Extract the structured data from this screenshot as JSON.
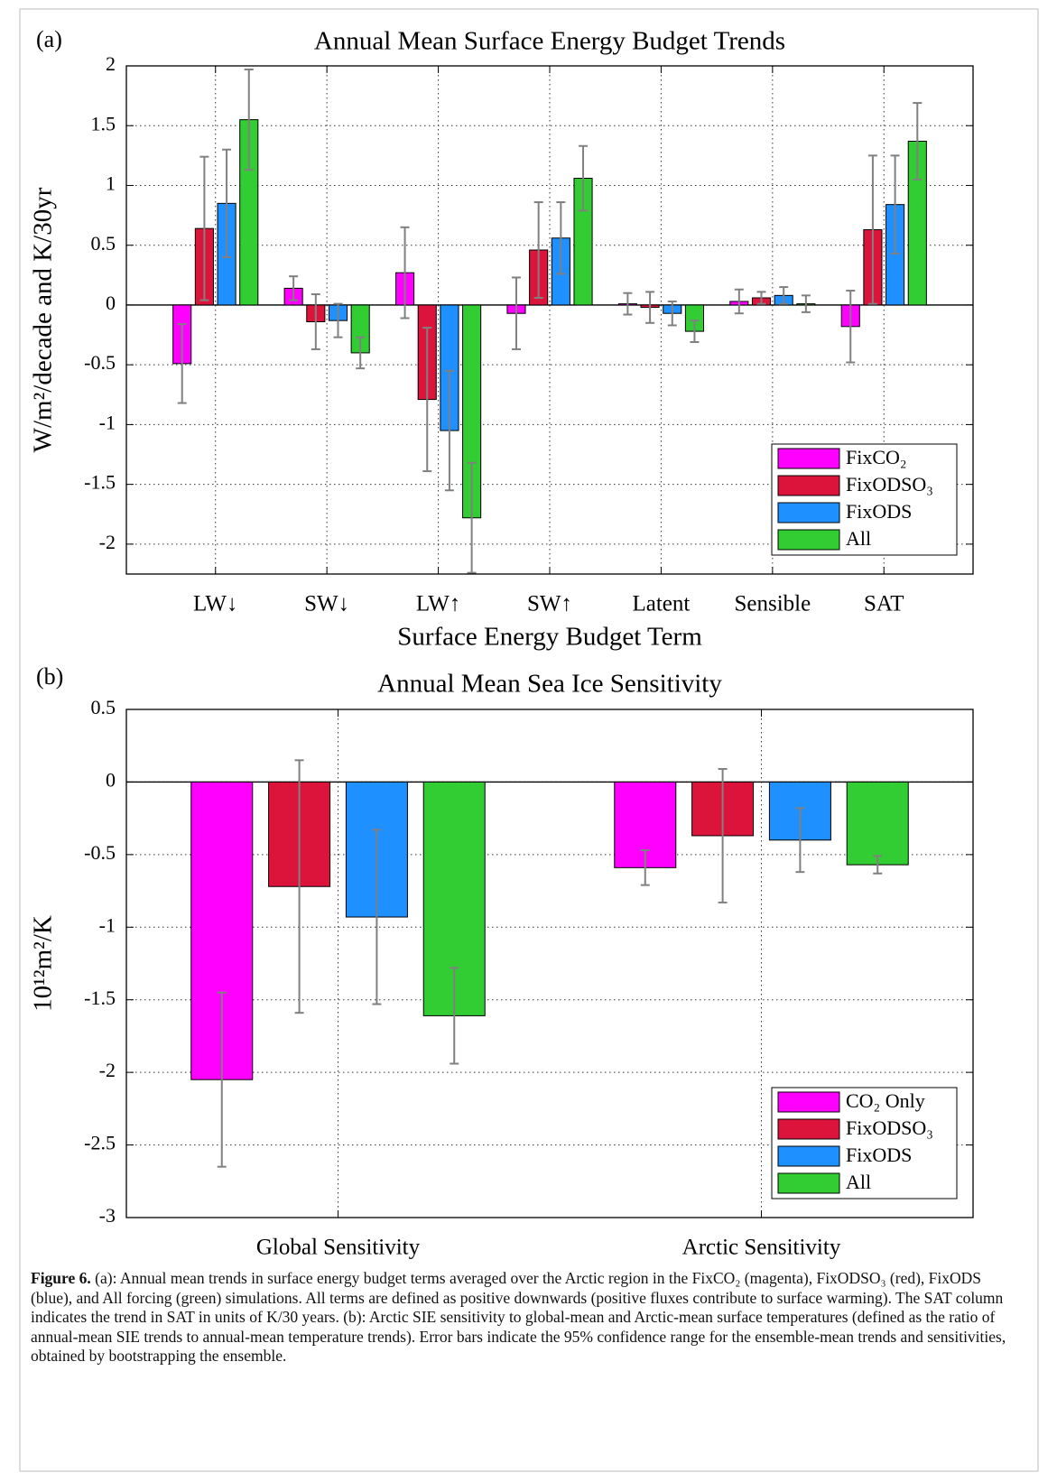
{
  "chart_data": [
    {
      "type": "bar",
      "panel": "(a)",
      "title": "Annual Mean Surface Energy Budget Trends",
      "x_label": "Surface Energy Budget Term",
      "y_label": "W/m²/decade and K/30yr",
      "categories": [
        "LW↓",
        "SW↓",
        "LW↑",
        "SW↑",
        "Latent",
        "Sensible",
        "SAT"
      ],
      "series": [
        {
          "name": "FixCO₂",
          "color": "#ff00ff",
          "values": [
            -0.49,
            0.14,
            0.27,
            -0.07,
            0.01,
            0.03,
            -0.18
          ],
          "errors": [
            0.33,
            0.1,
            0.38,
            0.3,
            0.09,
            0.1,
            0.3
          ]
        },
        {
          "name": "FixODSO₃",
          "color": "#dc143c",
          "values": [
            0.64,
            -0.14,
            -0.79,
            0.46,
            -0.02,
            0.06,
            0.63
          ],
          "errors": [
            0.6,
            0.23,
            0.6,
            0.4,
            0.13,
            0.05,
            0.62
          ]
        },
        {
          "name": "FixODS",
          "color": "#1e90ff",
          "values": [
            0.85,
            -0.13,
            -1.05,
            0.56,
            -0.07,
            0.08,
            0.84
          ],
          "errors": [
            0.45,
            0.14,
            0.5,
            0.3,
            0.1,
            0.07,
            0.41
          ]
        },
        {
          "name": "All",
          "color": "#32cd32",
          "values": [
            1.55,
            -0.4,
            -1.78,
            1.06,
            -0.22,
            0.01,
            1.37
          ],
          "errors": [
            0.42,
            0.13,
            0.46,
            0.27,
            0.09,
            0.07,
            0.32
          ]
        }
      ],
      "ylim": [
        -2.25,
        2
      ],
      "yticks": [
        -2,
        -1.5,
        -1,
        -0.5,
        0,
        0.5,
        1,
        1.5,
        2
      ],
      "grid": true,
      "legend": "lower right"
    },
    {
      "type": "bar",
      "panel": "(b)",
      "title": "Annual Mean Sea Ice Sensitivity",
      "y_label": "10¹²m²/K",
      "categories": [
        "Global Sensitivity",
        "Arctic Sensitivity"
      ],
      "series": [
        {
          "name": "CO₂ Only",
          "color": "#ff00ff",
          "values": [
            -2.05,
            -0.59
          ],
          "errors": [
            0.6,
            0.12
          ]
        },
        {
          "name": "FixODSO₃",
          "color": "#dc143c",
          "values": [
            -0.72,
            -0.37
          ],
          "errors": [
            0.87,
            0.46
          ]
        },
        {
          "name": "FixODS",
          "color": "#1e90ff",
          "values": [
            -0.93,
            -0.4
          ],
          "errors": [
            0.6,
            0.22
          ]
        },
        {
          "name": "All",
          "color": "#32cd32",
          "values": [
            -1.61,
            -0.57
          ],
          "errors": [
            0.33,
            0.06
          ]
        }
      ],
      "ylim": [
        -3,
        0.5
      ],
      "yticks": [
        -3,
        -2.5,
        -2,
        -1.5,
        -1,
        -0.5,
        0,
        0.5
      ],
      "grid": true,
      "legend": "lower right"
    }
  ],
  "caption": {
    "label": "Figure 6.",
    "text": "(a): Annual mean trends in surface energy budget terms averaged over the Arctic region in the FixCO₂ (magenta), FixODSO₃ (red), FixODS (blue), and All forcing (green) simulations. All terms are defined as positive downwards (positive fluxes contribute to surface warming). The SAT column indicates the trend in SAT in units of K/30 years. (b): Arctic SIE sensitivity to global-mean and Arctic-mean surface temperatures (defined as the ratio of annual-mean SIE trends to annual-mean temperature trends). Error bars indicate the 95% confidence range for the ensemble-mean trends and sensitivities, obtained by bootstrapping the ensemble."
  }
}
